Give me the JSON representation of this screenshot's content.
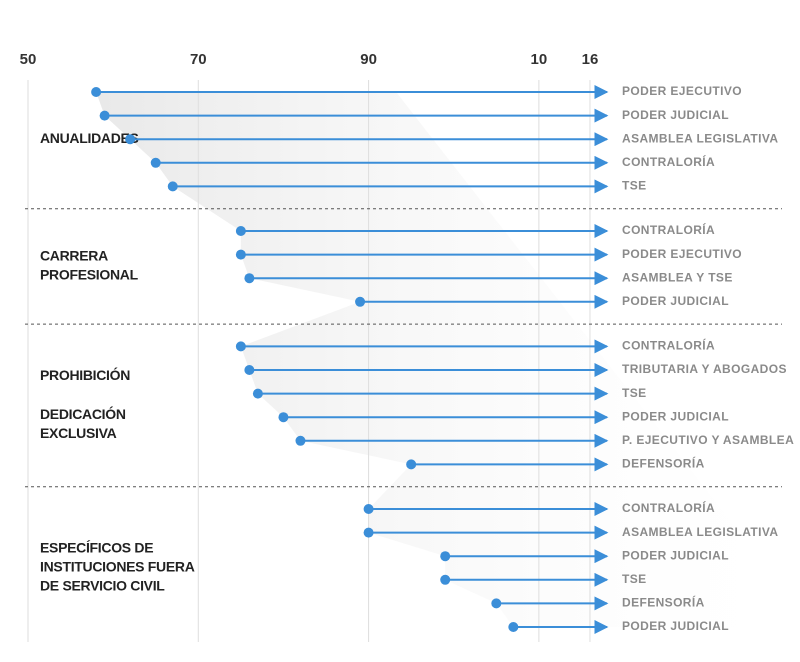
{
  "chart_data": {
    "type": "dot-arrow",
    "xlim": [
      1950,
      2018
    ],
    "xticks": [
      {
        "value": 1950,
        "label": "50"
      },
      {
        "value": 1970,
        "label": "70"
      },
      {
        "value": 1990,
        "label": "90"
      },
      {
        "value": 2010,
        "label": "10"
      },
      {
        "value": 2016,
        "label": "16"
      }
    ],
    "grid": true,
    "color": "#3b8ed8",
    "groups": [
      {
        "labels": [
          [
            "ANUALIDADES"
          ]
        ],
        "rows": [
          {
            "label": "PODER EJECUTIVO",
            "value": 1958
          },
          {
            "label": "PODER JUDICIAL",
            "value": 1959
          },
          {
            "label": "ASAMBLEA LEGISLATIVA",
            "value": 1962
          },
          {
            "label": "CONTRALORÍA",
            "value": 1965
          },
          {
            "label": "TSE",
            "value": 1967
          }
        ]
      },
      {
        "labels": [
          [
            "CARRERA",
            "PROFESIONAL"
          ]
        ],
        "rows": [
          {
            "label": "CONTRALORÍA",
            "value": 1975
          },
          {
            "label": "PODER EJECUTIVO",
            "value": 1975
          },
          {
            "label": "ASAMBLEA  Y TSE",
            "value": 1976
          },
          {
            "label": "PODER JUDICIAL",
            "value": 1989
          }
        ]
      },
      {
        "labels": [
          [
            "PROHIBICIÓN"
          ],
          [
            "DEDICACIÓN",
            "EXCLUSIVA"
          ]
        ],
        "rows": [
          {
            "label": "CONTRALORÍA",
            "value": 1975
          },
          {
            "label": "TRIBUTARIA Y ABOGADOS",
            "value": 1976
          },
          {
            "label": "TSE",
            "value": 1977
          },
          {
            "label": "PODER JUDICIAL",
            "value": 1980
          },
          {
            "label": "P. EJECUTIVO Y ASAMBLEA",
            "value": 1982
          },
          {
            "label": "DEFENSORÍA",
            "value": 1995
          }
        ]
      },
      {
        "labels": [
          [
            "ESPECÍFICOS DE",
            "INSTITUCIONES FUERA",
            "DE SERVICIO CIVIL"
          ]
        ],
        "rows": [
          {
            "label": "CONTRALORÍA",
            "value": 1990
          },
          {
            "label": "ASAMBLEA LEGISLATIVA",
            "value": 1990
          },
          {
            "label": "PODER JUDICIAL",
            "value": 1999
          },
          {
            "label": "TSE",
            "value": 1999
          },
          {
            "label": "DEFENSORÍA",
            "value": 2005
          },
          {
            "label": "PODER JUDICIAL",
            "value": 2007
          }
        ]
      }
    ]
  }
}
